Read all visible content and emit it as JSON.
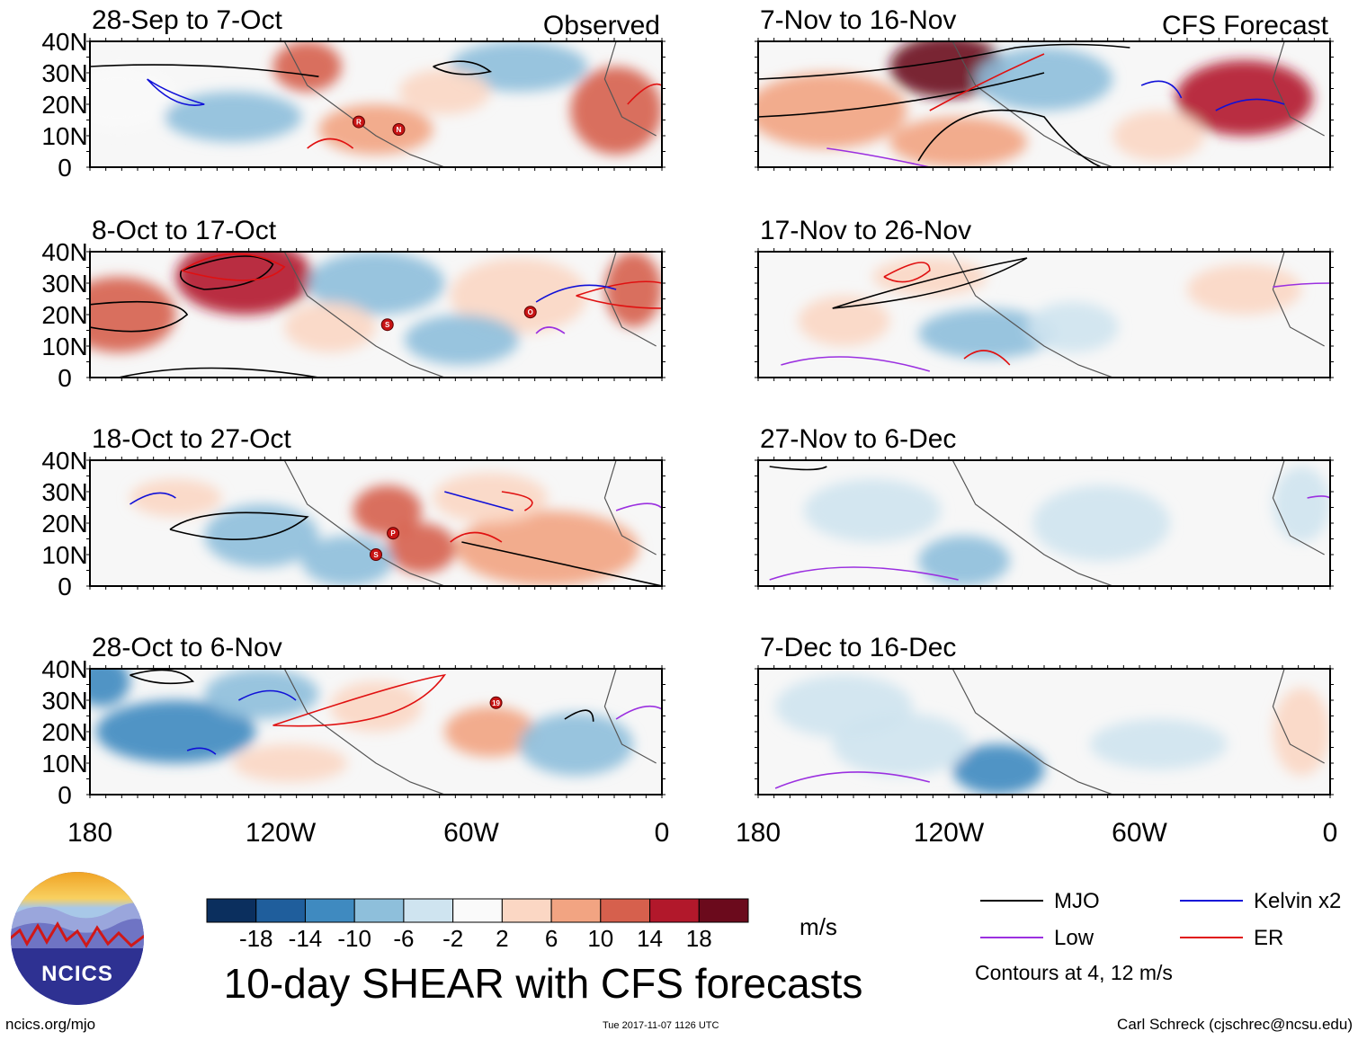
{
  "chart_data": {
    "type": "heatmap",
    "title": "10-day SHEAR with CFS forecasts",
    "column_labels": [
      "Observed",
      "CFS Forecast"
    ],
    "x_ticks": [
      "180",
      "120W",
      "60W",
      "0"
    ],
    "y_ticks": [
      "40N",
      "30N",
      "20N",
      "10N",
      "0"
    ],
    "x_range_deg_lon": [
      -180,
      0
    ],
    "y_range_deg_lat": [
      0,
      40
    ],
    "panels": [
      {
        "period": "28-Sep to 7-Oct",
        "kind": "observed",
        "storms": [
          "R",
          "N"
        ]
      },
      {
        "period": "8-Oct to 17-Oct",
        "kind": "observed",
        "storms": [
          "O",
          "S"
        ]
      },
      {
        "period": "18-Oct to 27-Oct",
        "kind": "observed",
        "storms": [
          "P",
          "S"
        ]
      },
      {
        "period": "28-Oct to 6-Nov",
        "kind": "observed",
        "storms": [
          "19"
        ]
      },
      {
        "period": "7-Nov to 16-Nov",
        "kind": "forecast",
        "storms": []
      },
      {
        "period": "17-Nov to 26-Nov",
        "kind": "forecast",
        "storms": []
      },
      {
        "period": "27-Nov to 6-Dec",
        "kind": "forecast",
        "storms": []
      },
      {
        "period": "7-Dec to 16-Dec",
        "kind": "forecast",
        "storms": []
      }
    ],
    "colorbar": {
      "unit": "m/s",
      "tick_labels": [
        "-18",
        "-14",
        "-10",
        "-6",
        "-2",
        "2",
        "6",
        "10",
        "14",
        "18"
      ],
      "colors": [
        "#0b2f5e",
        "#1f5e9c",
        "#3f8ac0",
        "#8ebfdb",
        "#cfe4f0",
        "#fafafa",
        "#fbd7c4",
        "#f2a482",
        "#d6604d",
        "#b2182b",
        "#6b0a1c"
      ]
    },
    "legend": {
      "items": [
        {
          "label": "MJO",
          "color": "#000000"
        },
        {
          "label": "Kelvin x2",
          "color": "#1010d8"
        },
        {
          "label": "Low",
          "color": "#9b30e0"
        },
        {
          "label": "ER",
          "color": "#e01010"
        }
      ],
      "note": "Contours at 4, 12 m/s"
    }
  },
  "branding": {
    "logo_text": "NCICS",
    "site": "ncics.org/mjo",
    "timestamp": "Tue 2017-11-07 1126 UTC",
    "author": "Carl Schreck (cjschrec@ncsu.edu)"
  }
}
